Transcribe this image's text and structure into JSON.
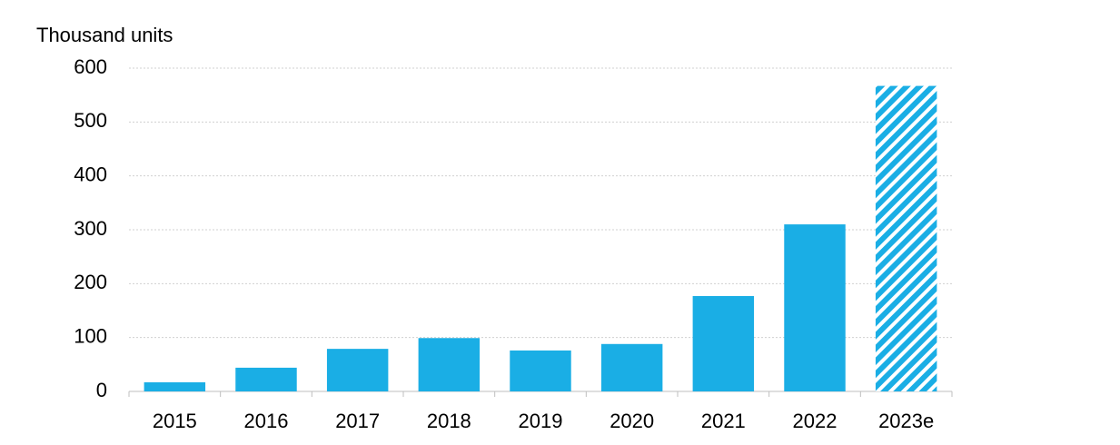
{
  "chart_data": {
    "type": "bar",
    "y_axis_label": "Thousand units",
    "categories": [
      "2015",
      "2016",
      "2017",
      "2018",
      "2019",
      "2020",
      "2021",
      "2022",
      "2023e"
    ],
    "values": [
      17,
      44,
      79,
      99,
      76,
      88,
      177,
      310,
      567
    ],
    "hatched": [
      false,
      false,
      false,
      false,
      false,
      false,
      false,
      false,
      true
    ],
    "color": "#1aaee5",
    "ylim": [
      0,
      600
    ],
    "yticks": [
      0,
      100,
      200,
      300,
      400,
      500,
      600
    ],
    "grid": true
  }
}
